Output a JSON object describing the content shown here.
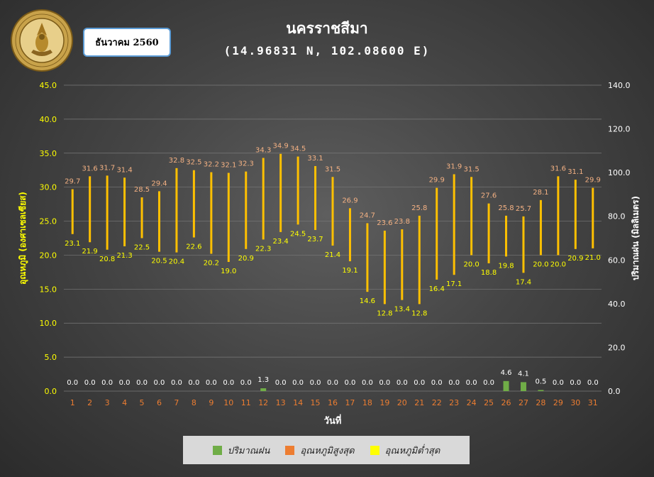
{
  "header": {
    "station_name": "นครราชสีมา",
    "coordinates": "(14.96831 N, 102.08600 E)",
    "month_label": "ธันวาคม 2560",
    "logo_text": "กรมอุตุนิยมวิทยา METEOROLOGICAL DEPARTMENT"
  },
  "colors": {
    "rain": "#70ad47",
    "tmax_bar": "#ffc000",
    "tmax_label": "#f4b183",
    "tmin_label": "#ffff00",
    "tmax_legend": "#ed7d31",
    "tmin_legend": "#ffff00",
    "axis_left_label": "#ffff00",
    "axis_x": "#ed7d31"
  },
  "legend": {
    "items": [
      {
        "label": "ปริมาณฝน",
        "color": "#70ad47"
      },
      {
        "label": "อุณหภูมิสูงสุด",
        "color": "#ed7d31"
      },
      {
        "label": "อุณหภูมิต่ำสุด",
        "color": "#ffff00"
      }
    ]
  },
  "chart_data": {
    "type": "bar",
    "xlabel": "วันที่",
    "ylabel_left": "อุณหภูมิ (องศาเซลเซียส)",
    "ylabel_right": "ปริมาณฝน (มิลลิเมตร)",
    "ylim_left": [
      0,
      45
    ],
    "ylim_right": [
      0,
      140
    ],
    "left_ticks": [
      "0.0",
      "5.0",
      "10.0",
      "15.0",
      "20.0",
      "25.0",
      "30.0",
      "35.0",
      "40.0",
      "45.0"
    ],
    "right_ticks": [
      "0.0",
      "20.0",
      "40.0",
      "60.0",
      "80.0",
      "100.0",
      "120.0",
      "140.0"
    ],
    "categories": [
      "1",
      "2",
      "3",
      "4",
      "5",
      "6",
      "7",
      "8",
      "9",
      "10",
      "11",
      "12",
      "13",
      "14",
      "15",
      "16",
      "17",
      "18",
      "19",
      "20",
      "21",
      "22",
      "23",
      "24",
      "25",
      "26",
      "27",
      "28",
      "29",
      "30",
      "31"
    ],
    "series": [
      {
        "name": "อุณหภูมิสูงสุด",
        "axis": "left",
        "values": [
          29.7,
          31.6,
          31.7,
          31.4,
          28.5,
          29.4,
          32.8,
          32.5,
          32.2,
          32.1,
          32.3,
          34.3,
          34.9,
          34.5,
          33.1,
          31.5,
          26.9,
          24.7,
          23.6,
          23.8,
          25.8,
          29.9,
          31.9,
          31.5,
          27.6,
          25.8,
          25.7,
          28.1,
          31.6,
          31.1,
          29.9
        ],
        "labels": [
          "29.7",
          "31.6",
          "31.7",
          "31.4",
          "28.5",
          "29.4",
          "32.8",
          "32.5",
          "32.2",
          "32.1",
          "32.3",
          "34.3",
          "34.9",
          "34.5",
          "33.1",
          "31.5",
          "26.9",
          "24.7",
          "23.6",
          "23.8",
          "25.8",
          "29.9",
          "31.9",
          "31.5",
          "27.6",
          "25.8",
          "25.7",
          "28.1",
          "31.6",
          "31.1",
          "29.9"
        ]
      },
      {
        "name": "อุณหภูมิต่ำสุด",
        "axis": "left",
        "values": [
          23.1,
          21.9,
          20.8,
          21.3,
          22.5,
          20.5,
          20.4,
          22.6,
          20.2,
          19.0,
          20.9,
          22.3,
          23.4,
          24.5,
          23.7,
          21.4,
          19.1,
          14.6,
          12.8,
          13.4,
          12.8,
          16.4,
          17.1,
          20.0,
          18.8,
          19.8,
          17.4,
          20.0,
          20.0,
          20.9,
          21.0
        ],
        "labels": [
          "23.1",
          "21.9",
          "20.8",
          "21.3",
          "22.5",
          "20.5",
          "20.4",
          "22.6",
          "20.2",
          "19.0",
          "20.9",
          "22.3",
          "23.4",
          "24.5",
          "23.7",
          "21.4",
          "19.1",
          "14.6",
          "12.8",
          "13.4",
          "12.8",
          "16.4",
          "17.1",
          "20.0",
          "18.8",
          "19.8",
          "17.4",
          "20.0",
          "20.0",
          "20.9",
          "21.0"
        ]
      },
      {
        "name": "ปริมาณฝน",
        "axis": "right",
        "values": [
          0,
          0,
          0,
          0,
          0,
          0,
          0,
          0,
          0,
          0,
          0,
          1.3,
          0,
          0,
          0,
          0,
          0,
          0,
          0,
          0,
          0,
          0,
          0,
          0,
          0,
          4.6,
          4.1,
          0.5,
          0,
          0,
          0
        ],
        "labels": [
          "0.0",
          "0.0",
          "0.0",
          "0.0",
          "0.0",
          "0.0",
          "0.0",
          "0.0",
          "0.0",
          "0.0",
          "0.0",
          "1.3",
          "0.0",
          "0.0",
          "0.0",
          "0.0",
          "0.0",
          "0.0",
          "0.0",
          "0.0",
          "0.0",
          "0.0",
          "0.0",
          "0.0",
          "0.0",
          "4.6",
          "4.1",
          "0.5",
          "0.0",
          "0.0",
          "0.0"
        ]
      }
    ],
    "grid": true,
    "legend_position": "bottom"
  }
}
